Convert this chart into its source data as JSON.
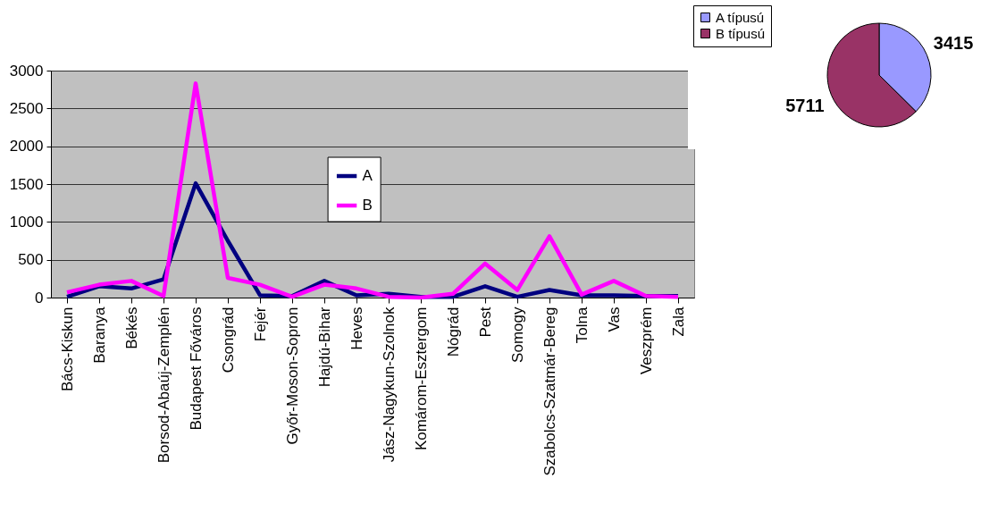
{
  "chart_data": [
    {
      "type": "line",
      "categories": [
        "Bács-Kiskun",
        "Baranya",
        "Békés",
        "Borsod-Abaúj-Zemplén",
        "Budapest Főváros",
        "Csongrád",
        "Fejér",
        "Győr-Moson-Sopron",
        "Hajdú-Bihar",
        "Heves",
        "Jász-Nagykun-Szolnok",
        "Komárom-Esztergom",
        "Nógrád",
        "Pest",
        "Somogy",
        "Szabolcs-Szatmár-Bereg",
        "Tolna",
        "Vas",
        "Veszprém",
        "Zala"
      ],
      "series": [
        {
          "name": "A",
          "color": "#000080",
          "values": [
            10,
            150,
            120,
            240,
            1510,
            750,
            30,
            20,
            220,
            30,
            50,
            10,
            10,
            150,
            10,
            100,
            30,
            30,
            20,
            20
          ]
        },
        {
          "name": "B",
          "color": "#ff00ff",
          "values": [
            70,
            170,
            220,
            20,
            2830,
            260,
            170,
            10,
            170,
            120,
            10,
            0,
            50,
            450,
            100,
            810,
            40,
            220,
            20,
            10
          ]
        }
      ],
      "ylim": [
        0,
        3000
      ],
      "yticks": [
        0,
        500,
        1000,
        1500,
        2000,
        2500,
        3000
      ],
      "grid": "y",
      "legend": "bottom left"
    },
    {
      "type": "pie",
      "categories": [
        "A típusú",
        "B típusú"
      ],
      "values": [
        3415,
        5711
      ],
      "colors": [
        "#9999ff",
        "#993366"
      ],
      "data_labels": true,
      "legend": "left"
    }
  ]
}
